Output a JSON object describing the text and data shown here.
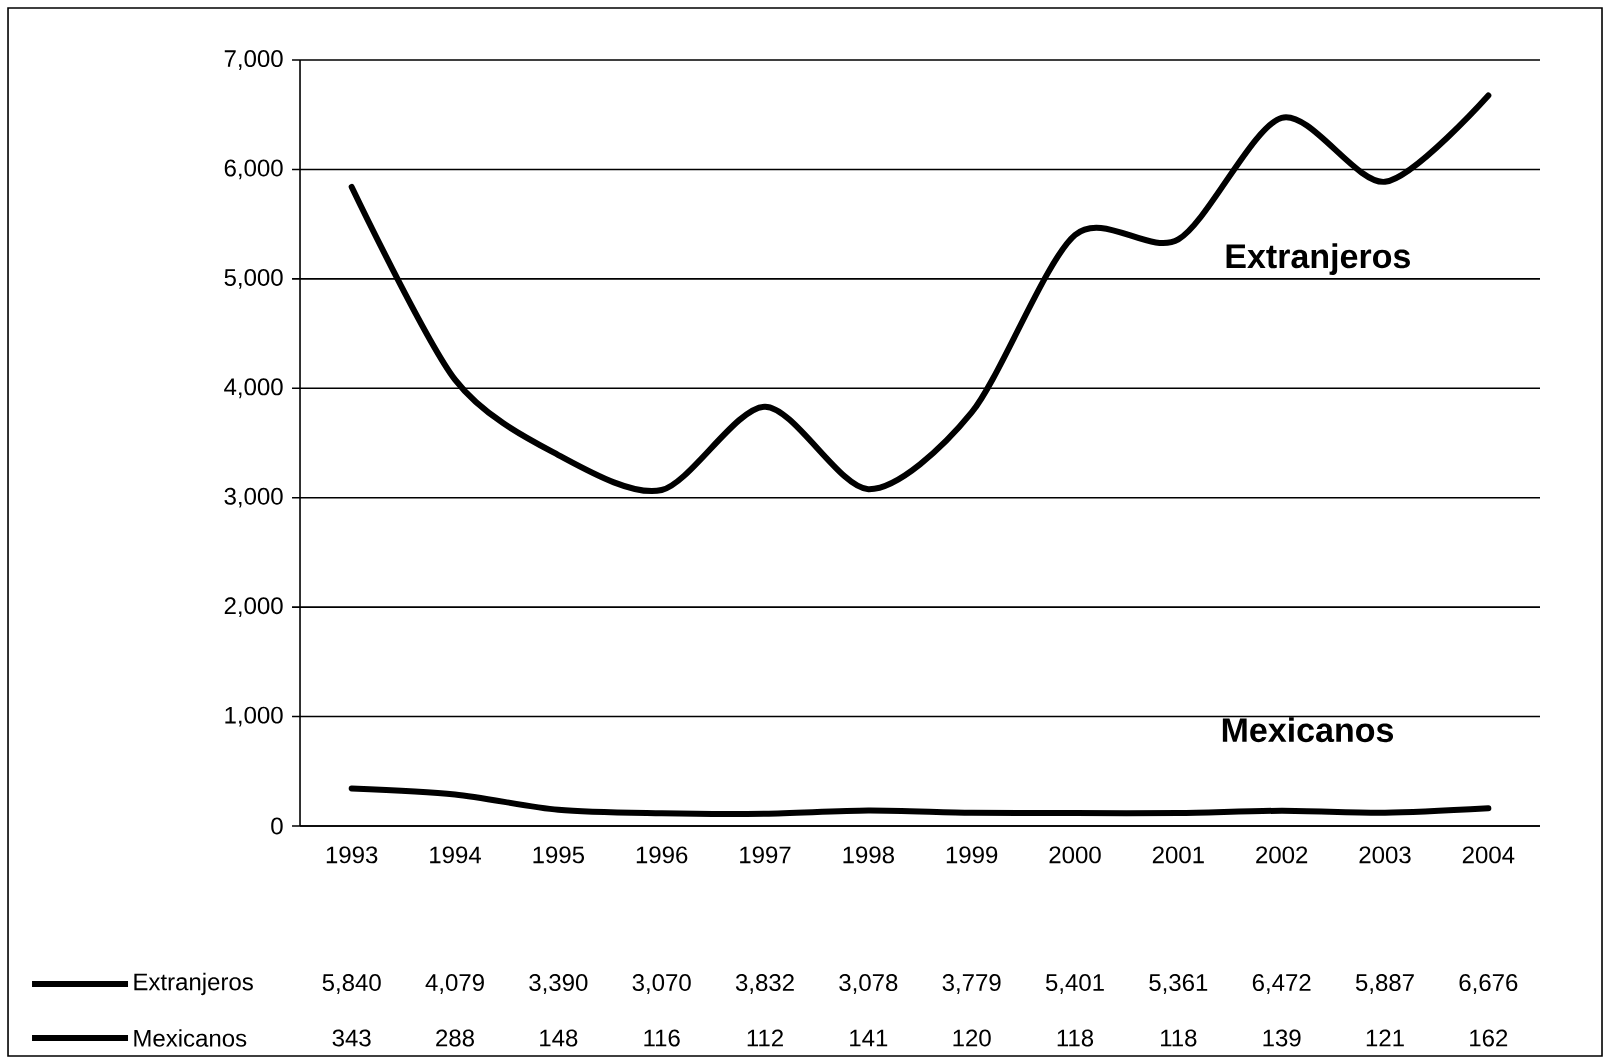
{
  "chart_data": {
    "type": "line",
    "categories": [
      "1993",
      "1994",
      "1995",
      "1996",
      "1997",
      "1998",
      "1999",
      "2000",
      "2001",
      "2002",
      "2003",
      "2004"
    ],
    "series": [
      {
        "name": "Extranjeros",
        "color": "#000000",
        "values": [
          5840,
          4079,
          3390,
          3070,
          3832,
          3078,
          3779,
          5401,
          5361,
          6472,
          5887,
          6676
        ],
        "value_labels": [
          "5,840",
          "4,079",
          "3,390",
          "3,070",
          "3,832",
          "3,078",
          "3,779",
          "5,401",
          "5,361",
          "6,472",
          "5,887",
          "6,676"
        ]
      },
      {
        "name": "Mexicanos",
        "color": "#000000",
        "values": [
          343,
          288,
          148,
          116,
          112,
          141,
          120,
          118,
          118,
          139,
          121,
          162
        ],
        "value_labels": [
          "343",
          "288",
          "148",
          "116",
          "112",
          "141",
          "120",
          "118",
          "118",
          "139",
          "121",
          "162"
        ]
      }
    ],
    "ylim": [
      0,
      7000
    ],
    "yticks": [
      0,
      {
        "value": 1000,
        "label": "1,000"
      },
      {
        "value": 2000,
        "label": "2,000"
      },
      {
        "value": 3000,
        "label": "3,000"
      },
      {
        "value": 4000,
        "label": "4,000"
      },
      {
        "value": 5000,
        "label": "5,000"
      },
      {
        "value": 6000,
        "label": "6,000"
      },
      {
        "value": 7000,
        "label": "7,000"
      }
    ],
    "grid": "y",
    "legend": "bottom",
    "marker": "none",
    "line_style": "solid"
  }
}
